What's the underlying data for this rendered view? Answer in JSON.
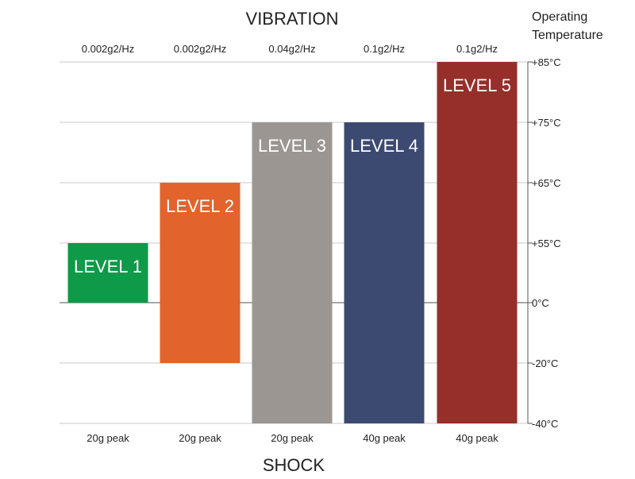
{
  "chart_data": {
    "type": "bar",
    "title": "VIBRATION",
    "bottom_title": "SHOCK",
    "ylabel_line1": "Operating",
    "ylabel_line2": "Temperature",
    "categories": [
      "LEVEL 1",
      "LEVEL 2",
      "LEVEL 3",
      "LEVEL 4",
      "LEVEL 5"
    ],
    "vibration": [
      "0.002g2/Hz",
      "0.002g2/Hz",
      "0.04g2/Hz",
      "0.1g2/Hz",
      "0.1g2/Hz"
    ],
    "shock": [
      "20g peak",
      "20g peak",
      "20g peak",
      "40g peak",
      "40g peak"
    ],
    "ranges": [
      {
        "low": 0,
        "high": 55
      },
      {
        "low": -20,
        "high": 65
      },
      {
        "low": -40,
        "high": 75
      },
      {
        "low": -40,
        "high": 75
      },
      {
        "low": -40,
        "high": 85
      }
    ],
    "colors": [
      "#0e9a48",
      "#e2632b",
      "#9b9692",
      "#3c4a72",
      "#962e2a"
    ],
    "yticks": [
      {
        "value": 85,
        "label": "+85°C"
      },
      {
        "value": 75,
        "label": "+75°C"
      },
      {
        "value": 65,
        "label": "+65°C"
      },
      {
        "value": 55,
        "label": "+55°C"
      },
      {
        "value": 0,
        "label": "0°C"
      },
      {
        "value": -20,
        "label": "-20°C"
      },
      {
        "value": -40,
        "label": "-40°C"
      }
    ],
    "grid": true,
    "axis_scale": "non-linear (ordinal tick spacing)"
  }
}
